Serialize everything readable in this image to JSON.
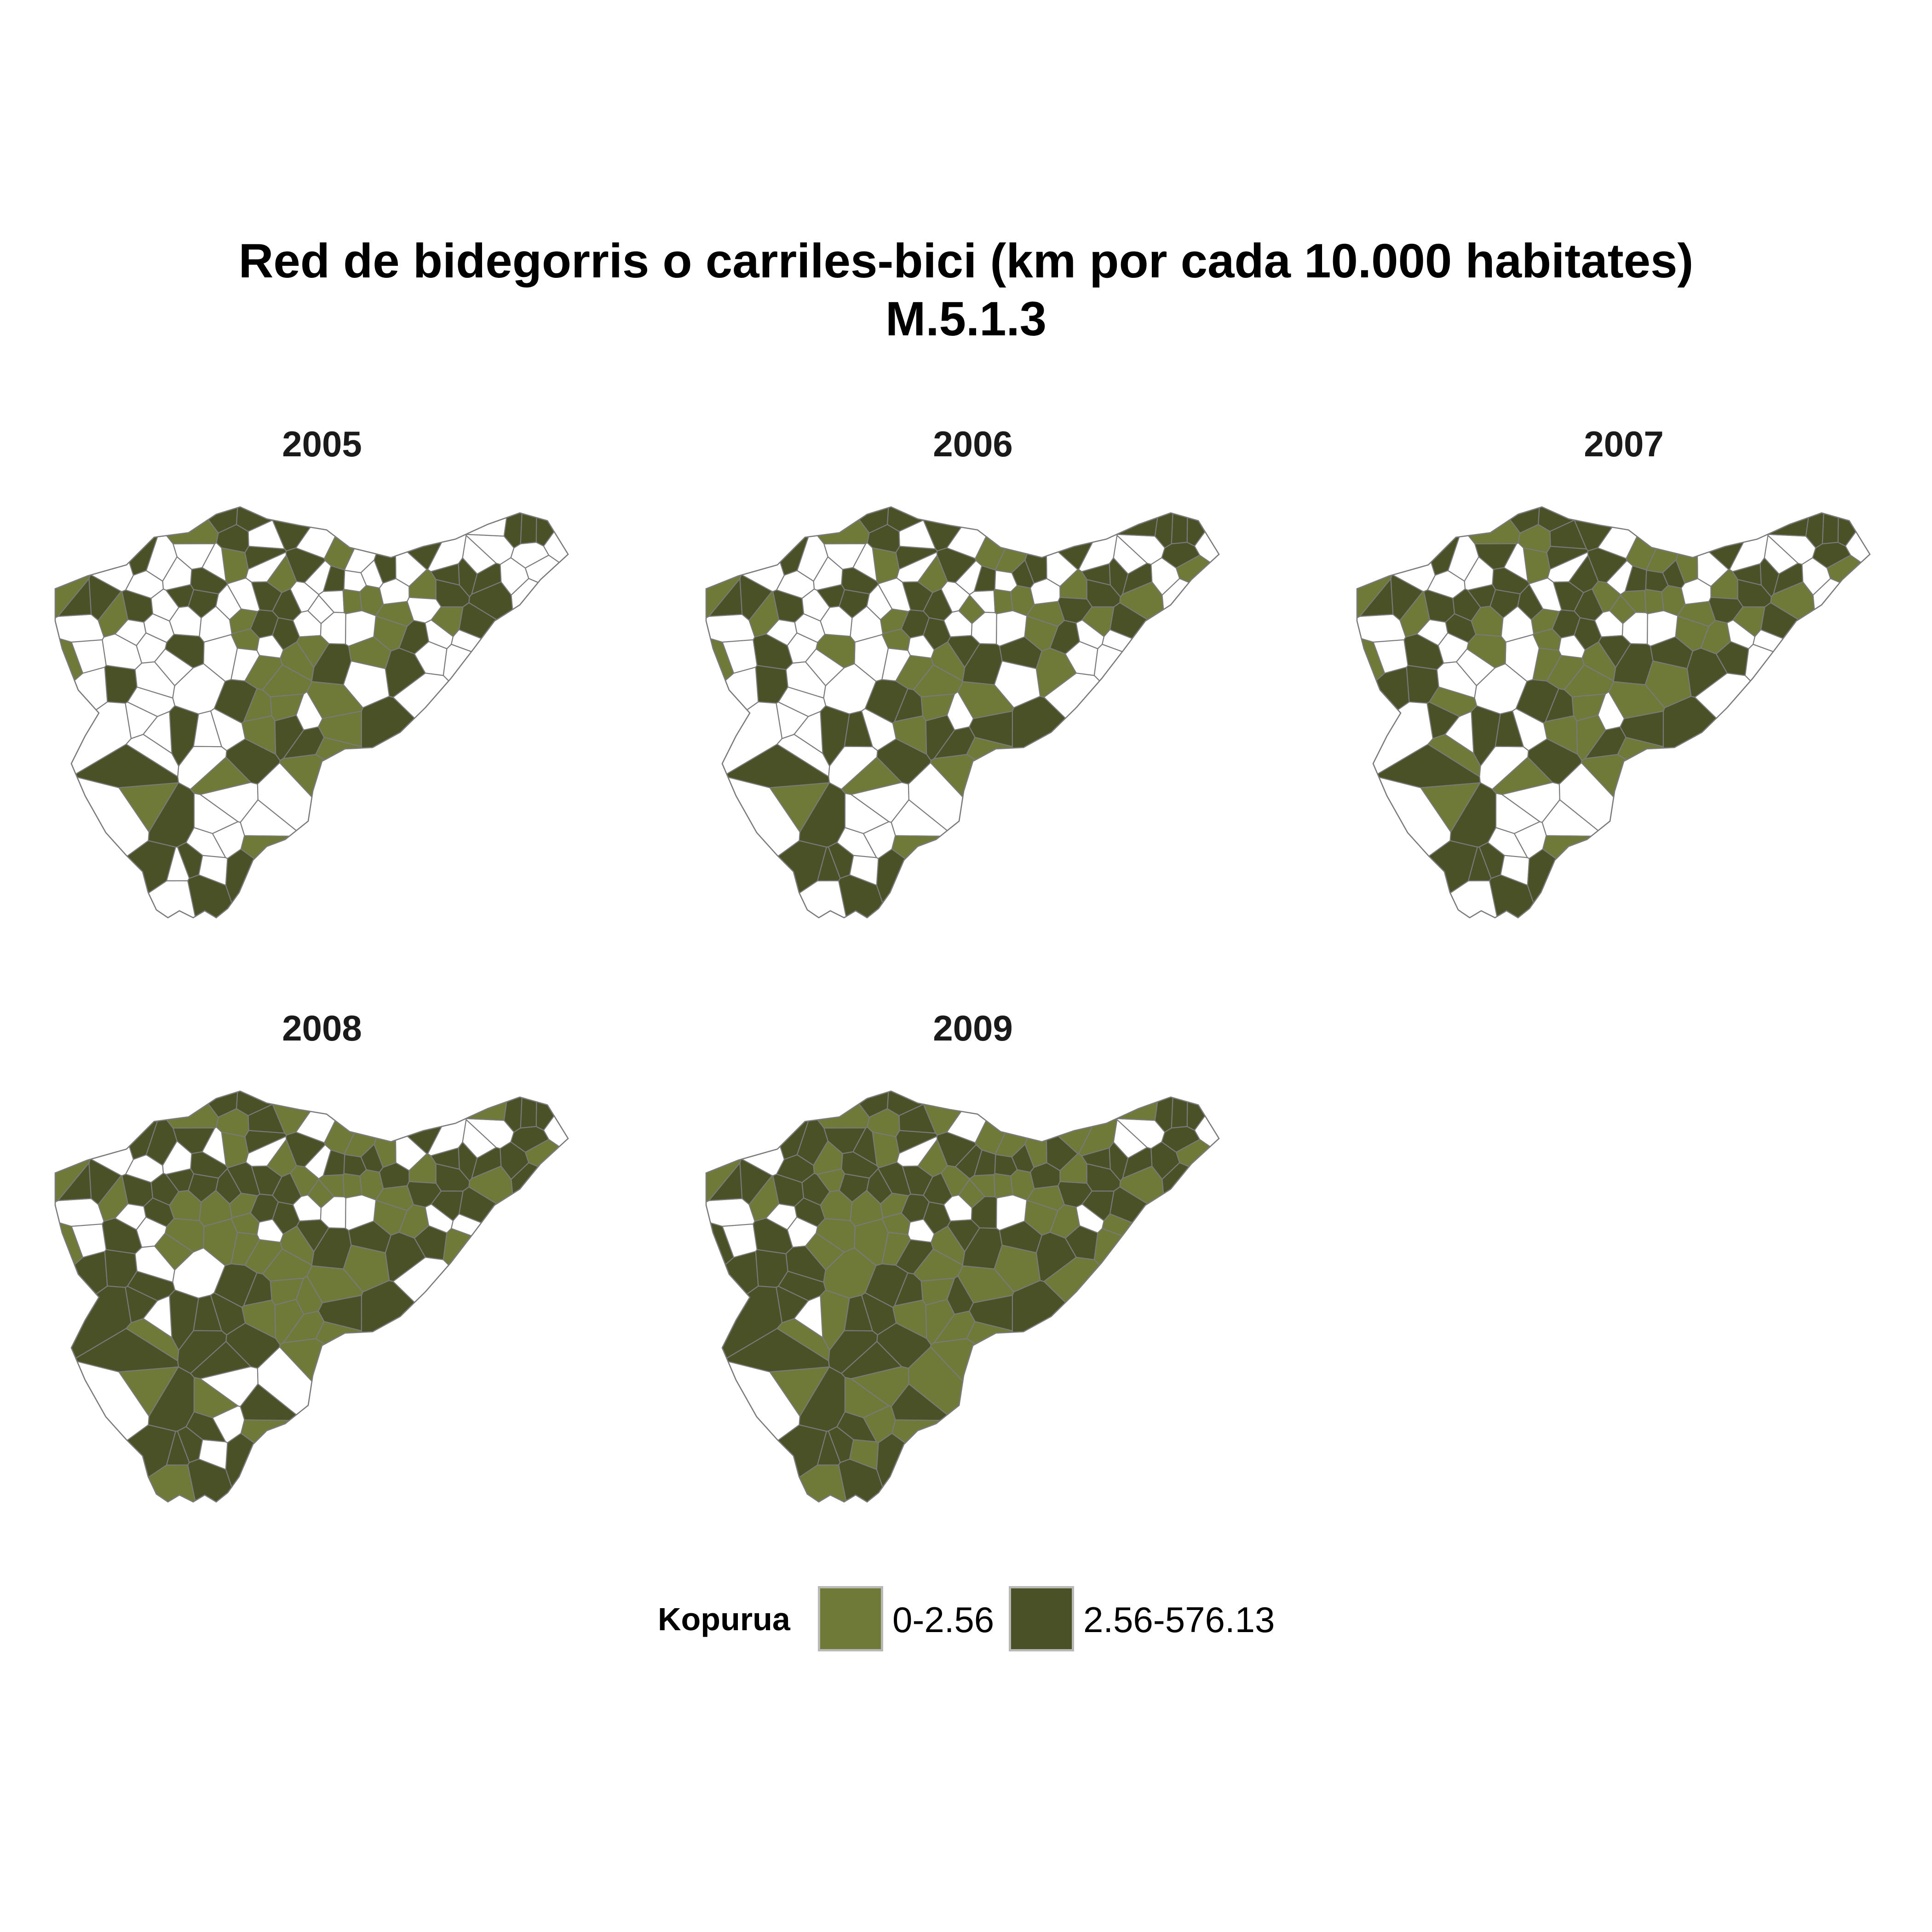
{
  "title": {
    "line1": "Red de bidegorris o carriles-bici (km por cada 10.000 habitates)",
    "line2": "M.5.1.3"
  },
  "colors": {
    "low": "#6f7a39",
    "high": "#4a5127",
    "empty": "#ffffff",
    "border": "#7a7a7a"
  },
  "facets": [
    {
      "year": "2005"
    },
    {
      "year": "2006"
    },
    {
      "year": "2007"
    },
    {
      "year": "2008"
    },
    {
      "year": "2009"
    }
  ],
  "legend": {
    "title": "Kopurua",
    "items": [
      {
        "label": "0-2.56",
        "color": "#6f7a39"
      },
      {
        "label": "2.56-576.13",
        "color": "#4a5127"
      }
    ]
  }
}
